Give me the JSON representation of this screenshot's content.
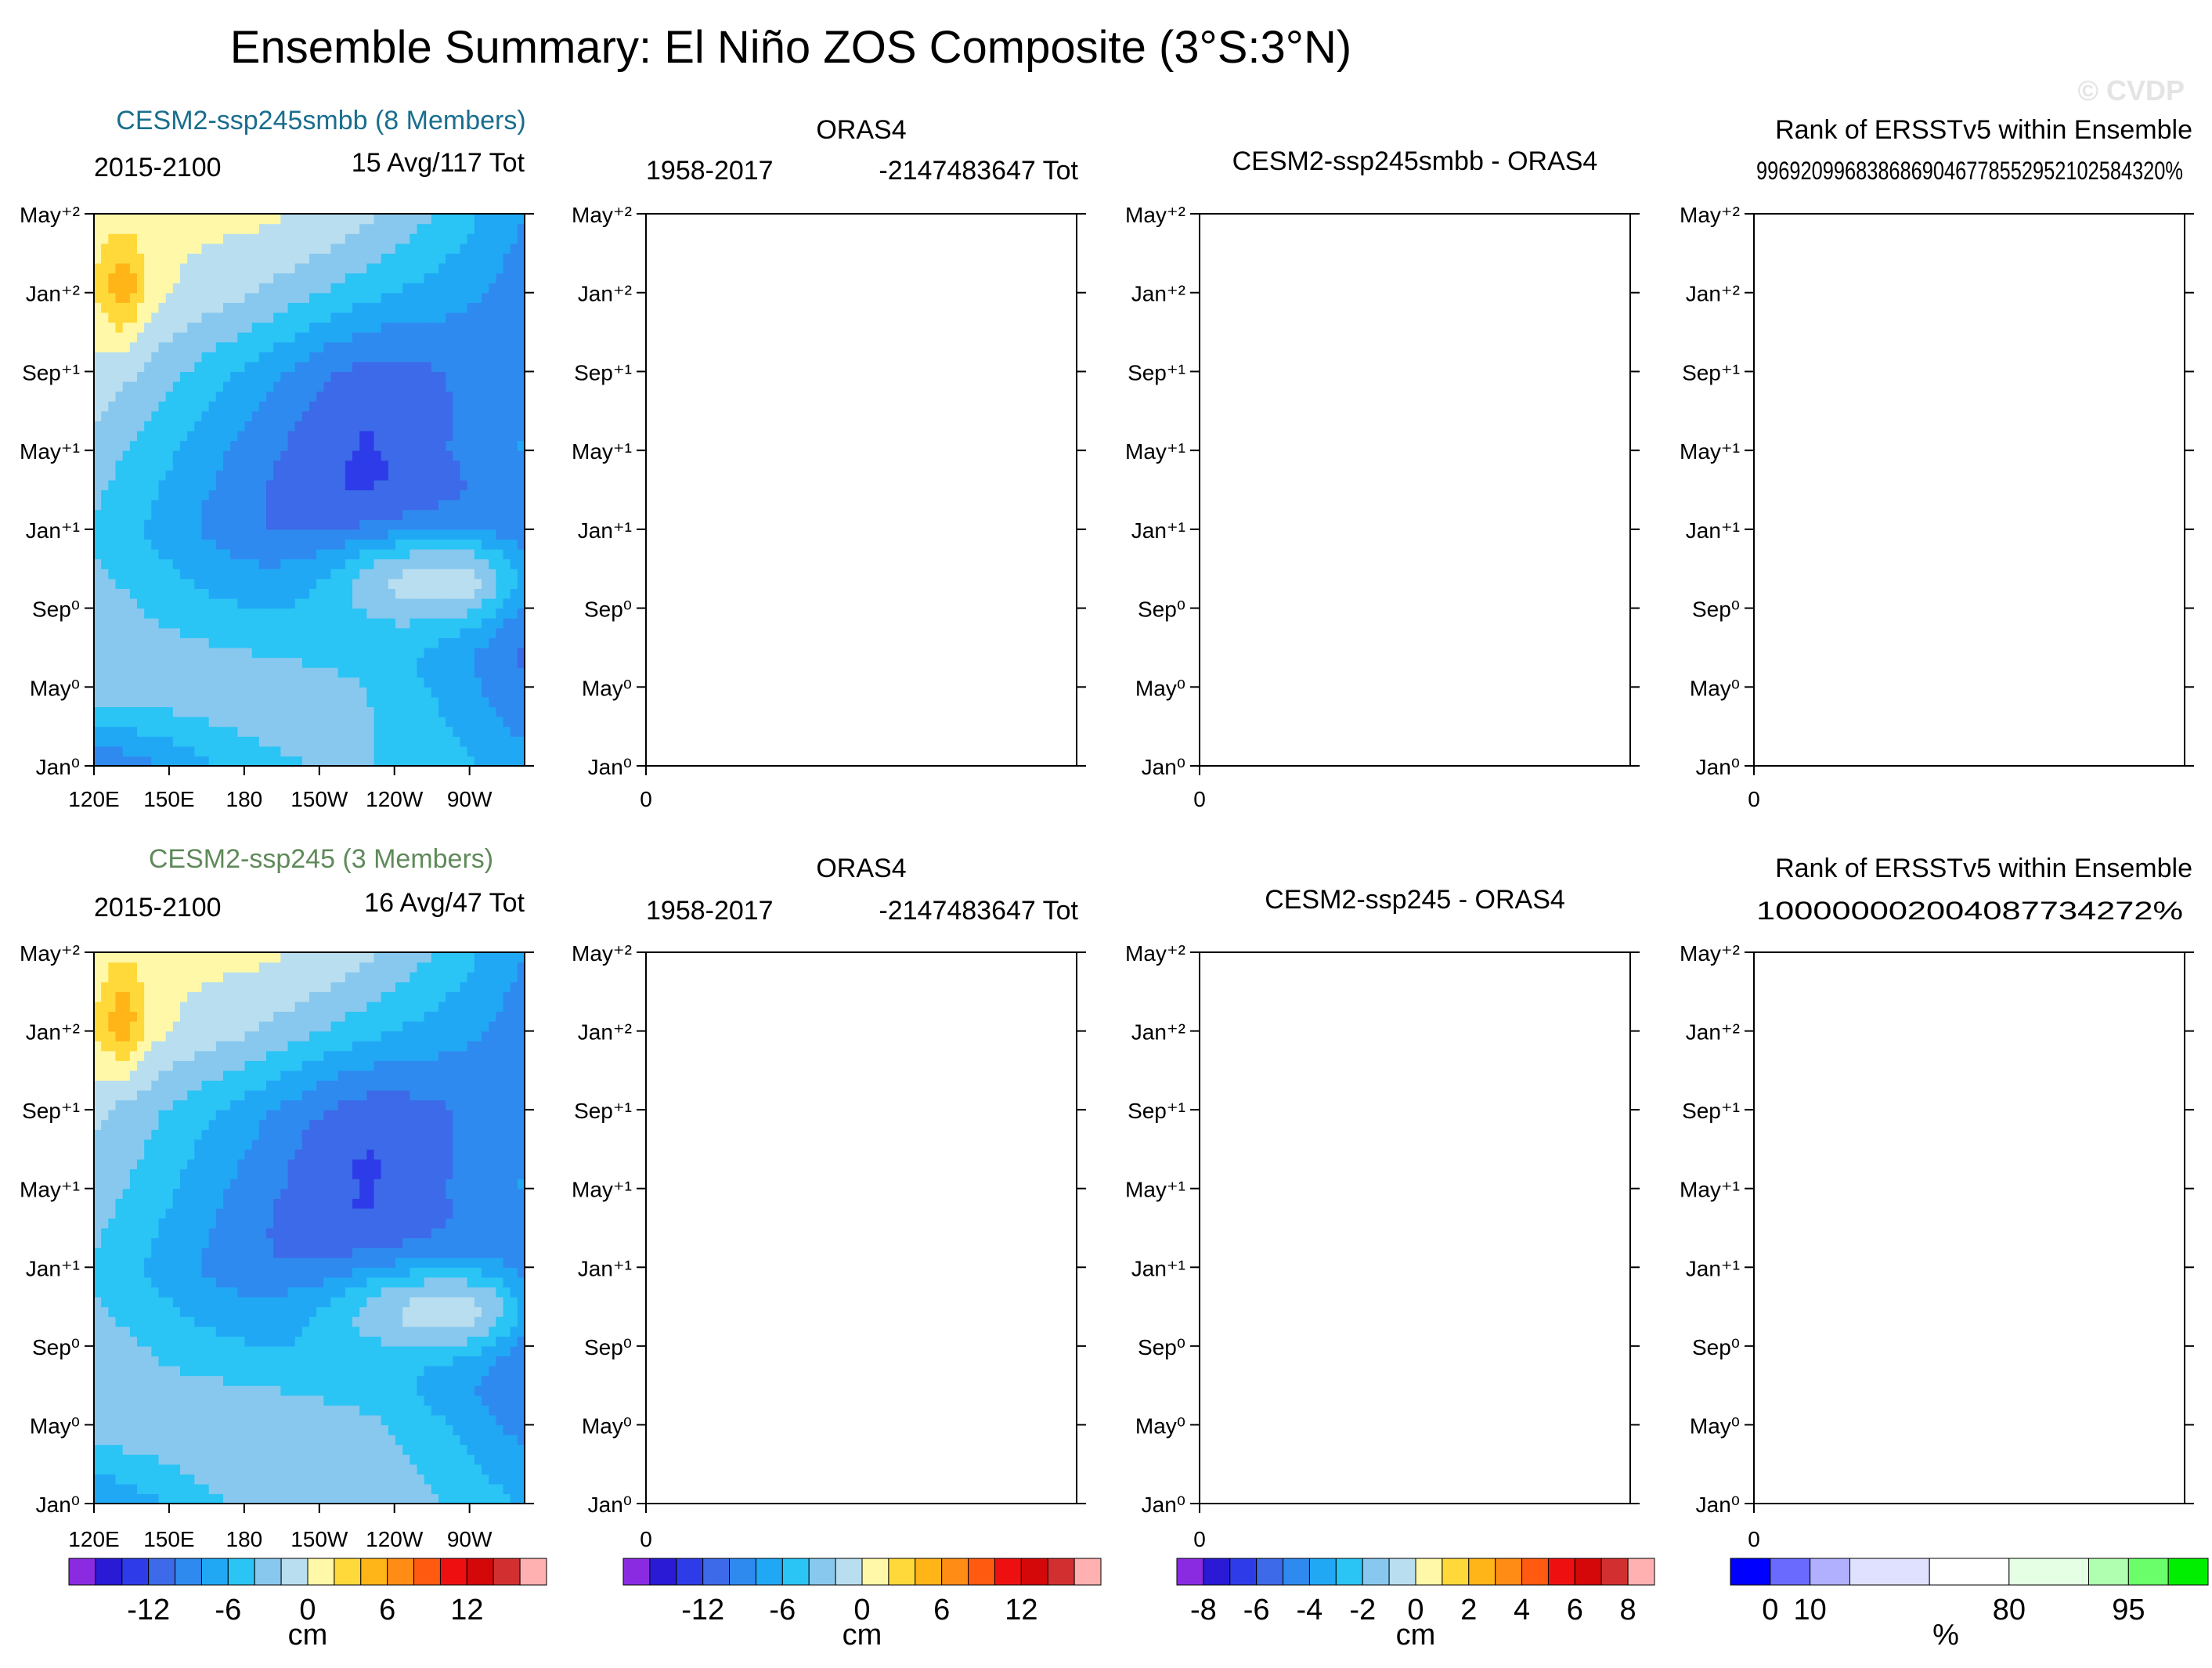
{
  "title": "Ensemble Summary: El Niño ZOS Composite (3°S:3°N)",
  "watermark": "© CVDP",
  "chart_data": {
    "type": "heatmap",
    "y_ticks": [
      "Jan⁰",
      "May⁰",
      "Sep⁰",
      "Jan⁺¹",
      "May⁺¹",
      "Sep⁺¹",
      "Jan⁺²",
      "May⁺²"
    ],
    "x_ticks_lon": [
      "120E",
      "150E",
      "180",
      "150W",
      "120W",
      "90W"
    ],
    "x_tick_zero": "0",
    "colors": {
      "cm": [
        "#8a2be2",
        "#2a1ad6",
        "#2d3ce8",
        "#3c6ae8",
        "#2f8af0",
        "#20a8f5",
        "#2ac4f5",
        "#88c8ee",
        "#b8def0",
        "#fff8a8",
        "#ffd93a",
        "#ffb418",
        "#ff8c14",
        "#ff5a10",
        "#ee1010",
        "#d40808",
        "#d23030",
        "#ffb0b0"
      ],
      "diff": [
        "#8a2be2",
        "#2a1ad6",
        "#2d3ce8",
        "#3c6ae8",
        "#2f8af0",
        "#20a8f5",
        "#2ac4f5",
        "#88c8ee",
        "#b8def0",
        "#fff8a8",
        "#ffd93a",
        "#ffb418",
        "#ff8c14",
        "#ff5a10",
        "#ee1010",
        "#d40808",
        "#d23030",
        "#ffb0b0"
      ],
      "rank": [
        "#0000ff",
        "#6a6aff",
        "#b0b0ff",
        "#e0e0ff",
        "#ffffff",
        "#e4ffe4",
        "#b0ffb0",
        "#6aff6a",
        "#00ee00"
      ]
    },
    "rows": [
      {
        "model": {
          "name": "CESM2-ssp245smbb (8 Members)",
          "name_color": "#1a6e8e",
          "years": "2015-2100",
          "count": "15 Avg/117 Tot",
          "field": {
            "base": [
              [
                -8,
                -6
              ],
              [
                -1,
                -9
              ],
              [
                -3,
                -12
              ],
              [
                -6,
                -12
              ],
              [
                -5,
                -9
              ],
              [
                -2,
                -10
              ],
              [
                2,
                -9
              ],
              [
                2,
                -7
              ]
            ],
            "blobs": [
              {
                "lon": 250,
                "t": 9.5,
                "slon": 28,
                "st": 2.0,
                "amp": 9
              },
              {
                "lon": 275,
                "t": 9.3,
                "slon": 14,
                "st": 1.5,
                "amp": 3
              },
              {
                "lon": 132,
                "t": 24.5,
                "slon": 6,
                "st": 2.0,
                "amp": 4
              },
              {
                "lon": 230,
                "t": 18.0,
                "slon": 22,
                "st": 4.0,
                "amp": -2
              }
            ]
          }
        },
        "obs": {
          "name": "ORAS4",
          "years": "1958-2017",
          "count": "-2147483647 Tot"
        },
        "diff": {
          "name": "CESM2-ssp245smbb - ORAS4"
        },
        "rank": {
          "name": "Rank of ERSSTv5 within Ensemble",
          "value": "99692099683868690467785529521025843​20%"
        }
      },
      {
        "model": {
          "name": "CESM2-ssp245 (3 Members)",
          "name_color": "#5f8a5a",
          "years": "2015-2100",
          "count": "16 Avg/47 Tot",
          "field": {
            "base": [
              [
                -6,
                -5
              ],
              [
                -1,
                -8
              ],
              [
                -3,
                -12
              ],
              [
                -6,
                -12
              ],
              [
                -5,
                -9
              ],
              [
                -3,
                -10
              ],
              [
                2,
                -9
              ],
              [
                2,
                -7
              ]
            ],
            "blobs": [
              {
                "lon": 250,
                "t": 10.0,
                "slon": 30,
                "st": 2.0,
                "amp": 9
              },
              {
                "lon": 275,
                "t": 9.6,
                "slon": 14,
                "st": 1.5,
                "amp": 3
              },
              {
                "lon": 132,
                "t": 25.0,
                "slon": 6,
                "st": 2.0,
                "amp": 4
              },
              {
                "lon": 230,
                "t": 18.0,
                "slon": 22,
                "st": 4.0,
                "amp": -2
              }
            ]
          }
        },
        "obs": {
          "name": "ORAS4",
          "years": "1958-2017",
          "count": "-2147483647 Tot"
        },
        "diff": {
          "name": "CESM2-ssp245 - ORAS4"
        },
        "rank": {
          "name": "Rank of ERSSTv5 within Ensemble",
          "value": "100000002004087734272%"
        }
      }
    ],
    "colorbars": [
      {
        "labels": [
          "-12",
          "-6",
          "0",
          "6",
          "12"
        ],
        "unit": "cm",
        "palette": "cm"
      },
      {
        "labels": [
          "-12",
          "-6",
          "0",
          "6",
          "12"
        ],
        "unit": "cm",
        "palette": "cm"
      },
      {
        "labels": [
          "-8",
          "-6",
          "-4",
          "-2",
          "0",
          "2",
          "4",
          "6",
          "8"
        ],
        "unit": "cm",
        "palette": "diff"
      },
      {
        "labels": [
          "0",
          "10",
          "80",
          "95"
        ],
        "unit": "%",
        "palette": "rank"
      }
    ]
  }
}
